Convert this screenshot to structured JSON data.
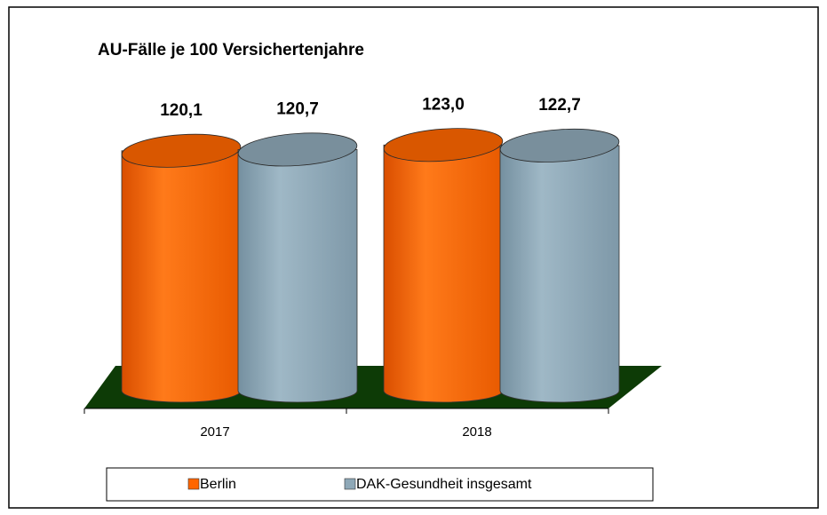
{
  "chart_data": {
    "type": "bar3d",
    "title": "AU-Fälle je 100 Versichertenjahre",
    "categories": [
      "2017",
      "2018"
    ],
    "series": [
      {
        "name": "Berlin",
        "color": "#ff6600",
        "values": [
          120.1,
          123.0
        ],
        "value_labels": [
          "120,1",
          "123,0"
        ]
      },
      {
        "name": "DAK-Gesundheit insgesamt",
        "color": "#8ea8b7",
        "values": [
          120.7,
          122.7
        ],
        "value_labels": [
          "120,7",
          "122,7"
        ]
      }
    ]
  }
}
